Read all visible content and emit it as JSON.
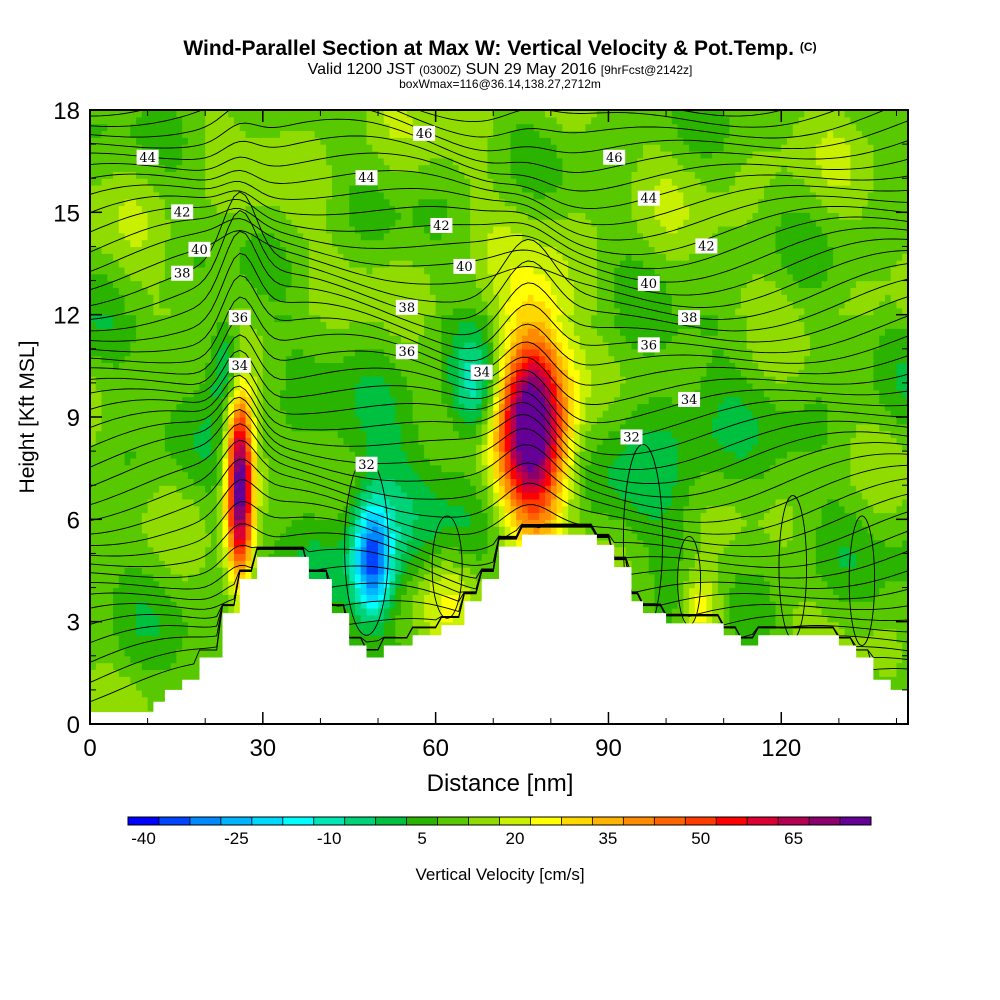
{
  "header": {
    "title": "Wind-Parallel Section at Max W: Vertical Velocity & Pot.Temp.",
    "title_mark": "(C)",
    "valid_prefix": "Valid 1200 JST",
    "valid_zulu": "(0300Z)",
    "valid_date": "SUN 29 May 2016",
    "forecast": "[9hrFcst@2142z]",
    "boxwmax": "boxWmax=116@36.14,138.27,2712m"
  },
  "chart_data": {
    "type": "heatmap",
    "xlabel": "Distance [nm]",
    "ylabel": "Height [Kft MSL]",
    "xlim": [
      0,
      142
    ],
    "ylim": [
      0,
      18
    ],
    "x_ticks": [
      0,
      30,
      60,
      90,
      120
    ],
    "y_ticks": [
      0,
      3,
      6,
      9,
      12,
      15,
      18
    ],
    "colorbar": {
      "label": "Vertical Velocity [cm/s]",
      "tick_labels": [
        -40,
        -25,
        -10,
        5,
        20,
        35,
        50,
        65
      ],
      "levels": [
        -40,
        -35,
        -30,
        -25,
        -20,
        -15,
        -10,
        -5,
        0,
        5,
        10,
        15,
        20,
        25,
        30,
        35,
        40,
        45,
        50,
        55,
        60,
        65,
        70
      ],
      "colors": [
        "#0000ff",
        "#0044ff",
        "#0088ff",
        "#00b4ff",
        "#00d8ff",
        "#00ffff",
        "#00e6b4",
        "#00d278",
        "#00c040",
        "#2ab400",
        "#58c800",
        "#90dc00",
        "#c8f000",
        "#ffff00",
        "#ffd800",
        "#ffb400",
        "#ff8c00",
        "#ff6400",
        "#ff3c00",
        "#ff0000",
        "#dc0032",
        "#b40050",
        "#8c006e",
        "#640096"
      ]
    },
    "terrain": [
      [
        0,
        0.35
      ],
      [
        10,
        0.35
      ],
      [
        11,
        0.35
      ],
      [
        11,
        0.65
      ],
      [
        13,
        0.65
      ],
      [
        13,
        1.0
      ],
      [
        16,
        1.0
      ],
      [
        16,
        1.3
      ],
      [
        19,
        1.3
      ],
      [
        19,
        1.95
      ],
      [
        23,
        1.95
      ],
      [
        23,
        3.25
      ],
      [
        26,
        3.25
      ],
      [
        26,
        4.25
      ],
      [
        29,
        4.25
      ],
      [
        29,
        4.9
      ],
      [
        38,
        4.9
      ],
      [
        38,
        4.25
      ],
      [
        42,
        4.25
      ],
      [
        42,
        3.25
      ],
      [
        45,
        3.25
      ],
      [
        45,
        2.3
      ],
      [
        48,
        2.3
      ],
      [
        48,
        1.95
      ],
      [
        51,
        1.95
      ],
      [
        51,
        2.3
      ],
      [
        56,
        2.3
      ],
      [
        56,
        2.6
      ],
      [
        61,
        2.6
      ],
      [
        61,
        2.9
      ],
      [
        65,
        2.9
      ],
      [
        65,
        3.6
      ],
      [
        68,
        3.6
      ],
      [
        68,
        4.25
      ],
      [
        71,
        4.25
      ],
      [
        71,
        5.2
      ],
      [
        75,
        5.2
      ],
      [
        75,
        5.55
      ],
      [
        81,
        5.55
      ],
      [
        81,
        5.55
      ],
      [
        88,
        5.55
      ],
      [
        88,
        5.25
      ],
      [
        91,
        5.25
      ],
      [
        91,
        4.6
      ],
      [
        94,
        4.6
      ],
      [
        94,
        3.6
      ],
      [
        96,
        3.6
      ],
      [
        96,
        3.25
      ],
      [
        100,
        3.25
      ],
      [
        100,
        2.95
      ],
      [
        110,
        2.95
      ],
      [
        110,
        2.6
      ],
      [
        113,
        2.6
      ],
      [
        113,
        2.3
      ],
      [
        116,
        2.3
      ],
      [
        116,
        2.6
      ],
      [
        130,
        2.6
      ],
      [
        130,
        2.3
      ],
      [
        133,
        2.3
      ],
      [
        133,
        1.95
      ],
      [
        136,
        1.95
      ],
      [
        136,
        1.3
      ],
      [
        139,
        1.3
      ],
      [
        139,
        1.0
      ],
      [
        142,
        1.0
      ]
    ],
    "vertical_velocity_features": [
      {
        "x": 26,
        "y": 7.0,
        "w_cm_s": 70,
        "sx": 1.6,
        "sy": 1.9
      },
      {
        "x": 77,
        "y": 8.8,
        "w_cm_s": 75,
        "sx": 4.2,
        "sy": 2.1
      },
      {
        "x": 24,
        "y": 10.5,
        "w_cm_s": -20,
        "sx": 2.2,
        "sy": 0.9
      },
      {
        "x": 67,
        "y": 9.8,
        "w_cm_s": -20,
        "sx": 3.0,
        "sy": 1.0
      },
      {
        "x": 49,
        "y": 4.8,
        "w_cm_s": -40,
        "sx": 2.3,
        "sy": 1.2
      },
      {
        "x": 52,
        "y": 6.0,
        "w_cm_s": -10,
        "sx": 8.0,
        "sy": 2.2
      },
      {
        "x": 100,
        "y": 8.0,
        "w_cm_s": -8,
        "sx": 8.0,
        "sy": 1.8
      },
      {
        "x": 106,
        "y": 3.4,
        "w_cm_s": 20,
        "sx": 2.5,
        "sy": 0.8
      },
      {
        "x": 62,
        "y": 3.8,
        "w_cm_s": 10,
        "sx": 5.0,
        "sy": 1.0
      }
    ],
    "theta_contours": [
      {
        "label": "32",
        "label_at": [
          48,
          7.6
        ]
      },
      {
        "label": "32",
        "label_at": [
          94,
          8.4
        ]
      },
      {
        "label": "34",
        "label_at": [
          26,
          10.5
        ]
      },
      {
        "label": "34",
        "label_at": [
          68,
          10.3
        ]
      },
      {
        "label": "34",
        "label_at": [
          104,
          9.5
        ]
      },
      {
        "label": "36",
        "label_at": [
          26,
          11.9
        ]
      },
      {
        "label": "36",
        "label_at": [
          55,
          10.9
        ]
      },
      {
        "label": "36",
        "label_at": [
          97,
          11.1
        ]
      },
      {
        "label": "38",
        "label_at": [
          16,
          13.2
        ]
      },
      {
        "label": "38",
        "label_at": [
          55,
          12.2
        ]
      },
      {
        "label": "38",
        "label_at": [
          104,
          11.9
        ]
      },
      {
        "label": "40",
        "label_at": [
          19,
          13.9
        ]
      },
      {
        "label": "40",
        "label_at": [
          65,
          13.4
        ]
      },
      {
        "label": "40",
        "label_at": [
          97,
          12.9
        ]
      },
      {
        "label": "42",
        "label_at": [
          16,
          15.0
        ]
      },
      {
        "label": "42",
        "label_at": [
          61,
          14.6
        ]
      },
      {
        "label": "42",
        "label_at": [
          107,
          14.0
        ]
      },
      {
        "label": "44",
        "label_at": [
          10,
          16.6
        ]
      },
      {
        "label": "44",
        "label_at": [
          48,
          16.0
        ]
      },
      {
        "label": "44",
        "label_at": [
          97,
          15.4
        ]
      },
      {
        "label": "46",
        "label_at": [
          58,
          17.3
        ]
      },
      {
        "label": "46",
        "label_at": [
          91,
          16.6
        ]
      }
    ]
  }
}
